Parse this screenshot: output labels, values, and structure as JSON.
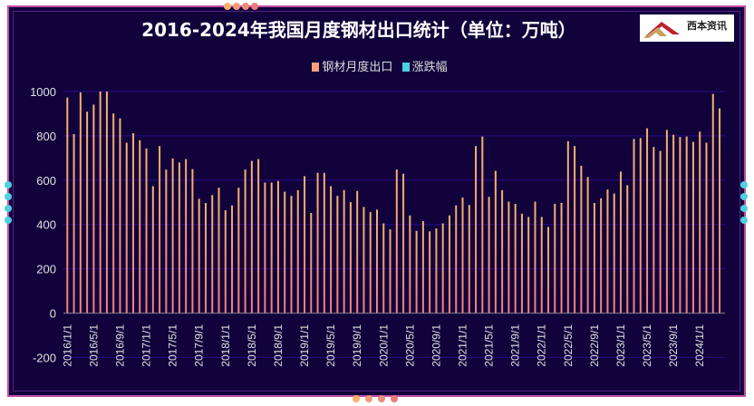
{
  "chart_data": {
    "type": "bar",
    "title": "2016-2024年我国月度钢材出口统计（单位：万吨）",
    "xlabel": "",
    "ylabel": "",
    "ylim": [
      -200,
      1000
    ],
    "yticks": [
      -200,
      0,
      200,
      400,
      600,
      800,
      1000
    ],
    "grid": true,
    "legend_placement": "top",
    "tick_labels": [
      "2016/1/1",
      "2016/5/1",
      "2016/9/1",
      "2017/1/1",
      "2017/5/1",
      "2017/9/1",
      "2018/1/1",
      "2018/5/1",
      "2018/9/1",
      "2019/1/1",
      "2019/5/1",
      "2019/9/1",
      "2020/1/1",
      "2020/5/1",
      "2020/9/1",
      "2021/1/1",
      "2021/5/1",
      "2021/9/1",
      "2022/1/1",
      "2022/5/1",
      "2022/9/1",
      "2023/1/1",
      "2023/5/1",
      "2023/9/1",
      "2024/1/1"
    ],
    "tick_every_months": 4,
    "x_start": "2016/1/1",
    "x_end": "2024/4/1",
    "series": [
      {
        "name": "钢材月度出口",
        "color": "#f4a07a",
        "values": [
          973,
          808,
          996,
          909,
          941,
          1000,
          1000,
          901,
          879,
          769,
          812,
          780,
          743,
          573,
          754,
          648,
          698,
          680,
          695,
          650,
          516,
          497,
          533,
          566,
          464,
          486,
          566,
          648,
          687,
          695,
          589,
          589,
          596,
          548,
          529,
          555,
          618,
          452,
          633,
          633,
          573,
          529,
          555,
          501,
          551,
          479,
          456,
          467,
          405,
          378,
          648,
          629,
          441,
          371,
          415,
          369,
          382,
          405,
          441,
          486,
          522,
          488,
          754,
          797,
          525,
          642,
          555,
          503,
          493,
          449,
          434,
          503,
          434,
          389,
          493,
          497,
          776,
          754,
          665,
          614,
          497,
          518,
          558,
          540,
          639,
          577,
          786,
          790,
          834,
          750,
          732,
          827,
          805,
          795,
          797,
          773,
          819,
          769,
          989,
          924
        ]
      },
      {
        "name": "涨跌幅",
        "color": "#4dd0e1",
        "values": []
      }
    ]
  },
  "logo": {
    "text": "西本资讯"
  },
  "colors": {
    "background": "#11023b",
    "border": "#c04aa8",
    "grid": "#2a0c8c",
    "bar_top": "#f6b26b",
    "bar_bottom": "#f0807a",
    "axis_text": "#e0e0e0"
  }
}
